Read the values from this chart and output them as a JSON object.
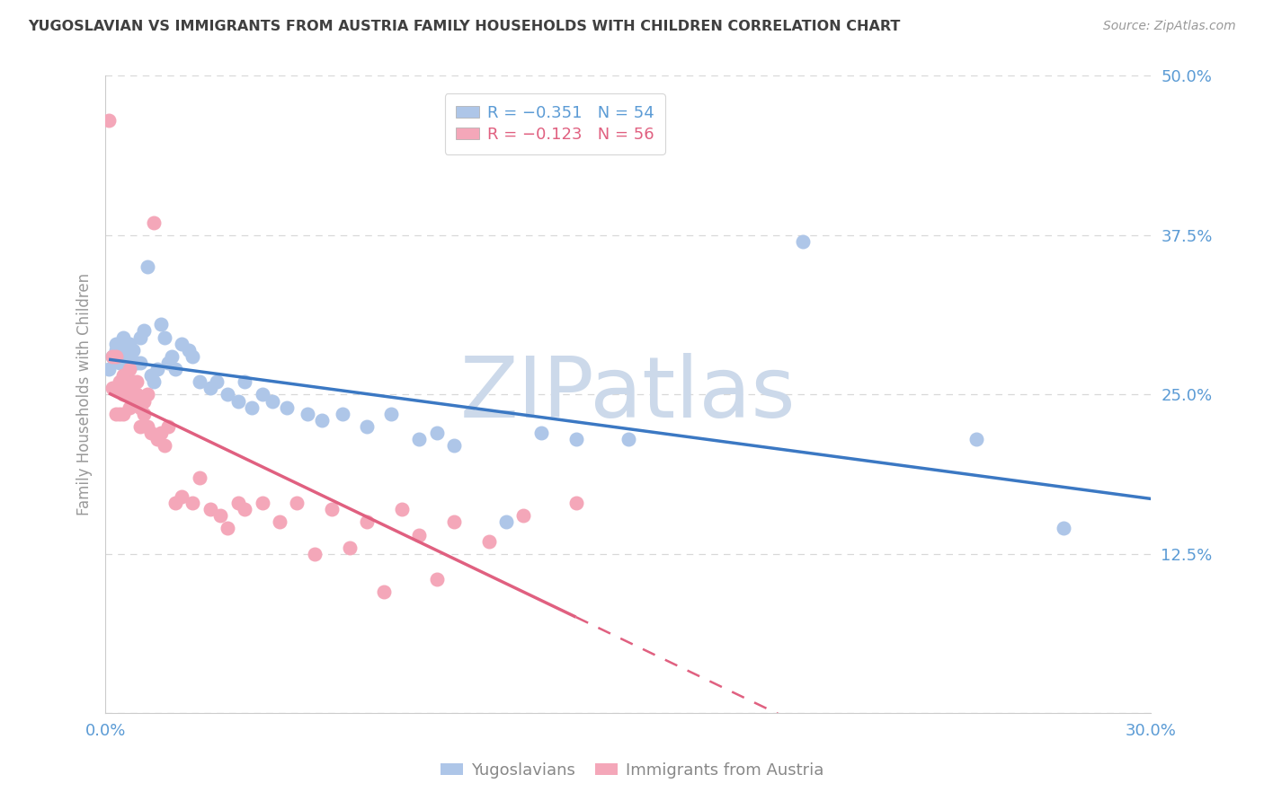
{
  "title": "YUGOSLAVIAN VS IMMIGRANTS FROM AUSTRIA FAMILY HOUSEHOLDS WITH CHILDREN CORRELATION CHART",
  "source": "Source: ZipAtlas.com",
  "ylabel": "Family Households with Children",
  "xlim": [
    0.0,
    0.3
  ],
  "ylim": [
    0.0,
    0.5
  ],
  "x_ticks": [
    0.0,
    0.05,
    0.1,
    0.15,
    0.2,
    0.25,
    0.3
  ],
  "x_tick_labels": [
    "0.0%",
    "",
    "",
    "",
    "",
    "",
    "30.0%"
  ],
  "y_ticks": [
    0.0,
    0.125,
    0.25,
    0.375,
    0.5
  ],
  "y_tick_labels": [
    "",
    "12.5%",
    "25.0%",
    "37.5%",
    "50.0%"
  ],
  "watermark_text": "ZIPatlas",
  "bg_color": "#ffffff",
  "grid_color": "#d8d8d8",
  "title_color": "#404040",
  "tick_color": "#5b9bd5",
  "watermark_color": "#ccd9ea",
  "series_blue": {
    "name": "Yugoslavians",
    "color": "#aec6e8",
    "line_color": "#3b78c3",
    "x": [
      0.001,
      0.002,
      0.003,
      0.003,
      0.004,
      0.004,
      0.005,
      0.005,
      0.006,
      0.006,
      0.007,
      0.007,
      0.008,
      0.009,
      0.01,
      0.01,
      0.011,
      0.012,
      0.013,
      0.014,
      0.015,
      0.016,
      0.017,
      0.018,
      0.019,
      0.02,
      0.022,
      0.024,
      0.025,
      0.027,
      0.03,
      0.032,
      0.035,
      0.038,
      0.04,
      0.042,
      0.045,
      0.048,
      0.052,
      0.058,
      0.062,
      0.068,
      0.075,
      0.082,
      0.09,
      0.095,
      0.1,
      0.115,
      0.125,
      0.135,
      0.15,
      0.2,
      0.25,
      0.275
    ],
    "y": [
      0.27,
      0.28,
      0.29,
      0.285,
      0.275,
      0.28,
      0.295,
      0.285,
      0.275,
      0.265,
      0.29,
      0.28,
      0.285,
      0.275,
      0.295,
      0.275,
      0.3,
      0.35,
      0.265,
      0.26,
      0.27,
      0.305,
      0.295,
      0.275,
      0.28,
      0.27,
      0.29,
      0.285,
      0.28,
      0.26,
      0.255,
      0.26,
      0.25,
      0.245,
      0.26,
      0.24,
      0.25,
      0.245,
      0.24,
      0.235,
      0.23,
      0.235,
      0.225,
      0.235,
      0.215,
      0.22,
      0.21,
      0.15,
      0.22,
      0.215,
      0.215,
      0.37,
      0.215,
      0.145
    ]
  },
  "series_pink": {
    "name": "Immigrants from Austria",
    "color": "#f4a7b9",
    "line_color": "#e06080",
    "line_solid_end": 0.135,
    "x": [
      0.001,
      0.002,
      0.002,
      0.003,
      0.003,
      0.003,
      0.004,
      0.004,
      0.005,
      0.005,
      0.005,
      0.006,
      0.006,
      0.007,
      0.007,
      0.007,
      0.008,
      0.008,
      0.009,
      0.009,
      0.01,
      0.01,
      0.011,
      0.011,
      0.012,
      0.012,
      0.013,
      0.014,
      0.015,
      0.016,
      0.017,
      0.018,
      0.02,
      0.022,
      0.025,
      0.027,
      0.03,
      0.033,
      0.035,
      0.038,
      0.04,
      0.045,
      0.05,
      0.055,
      0.06,
      0.065,
      0.07,
      0.075,
      0.08,
      0.085,
      0.09,
      0.095,
      0.1,
      0.11,
      0.12,
      0.135
    ],
    "y": [
      0.465,
      0.28,
      0.255,
      0.28,
      0.255,
      0.235,
      0.26,
      0.235,
      0.265,
      0.25,
      0.235,
      0.26,
      0.25,
      0.27,
      0.25,
      0.24,
      0.26,
      0.245,
      0.26,
      0.25,
      0.24,
      0.225,
      0.245,
      0.235,
      0.225,
      0.25,
      0.22,
      0.385,
      0.215,
      0.22,
      0.21,
      0.225,
      0.165,
      0.17,
      0.165,
      0.185,
      0.16,
      0.155,
      0.145,
      0.165,
      0.16,
      0.165,
      0.15,
      0.165,
      0.125,
      0.16,
      0.13,
      0.15,
      0.095,
      0.16,
      0.14,
      0.105,
      0.15,
      0.135,
      0.155,
      0.165
    ]
  }
}
